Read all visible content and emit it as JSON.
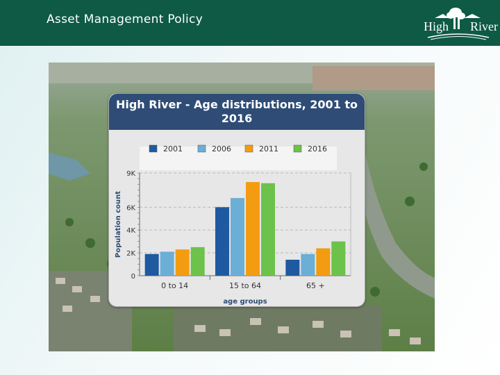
{
  "slide": {
    "title": "Asset Management Policy"
  },
  "logo": {
    "text_left": "High",
    "text_right": "River"
  },
  "colors": {
    "header": "#0e5a44",
    "chart_header": "#2e4c75"
  },
  "chart_data": {
    "type": "bar",
    "title": "High River - Age distributions, 2001 to 2016",
    "title_lines": [
      "High River - Age distributions, 2001 to",
      "2016"
    ],
    "xlabel": "age groups",
    "ylabel": "Population count",
    "categories": [
      "0 to 14",
      "15 to 64",
      "65 +"
    ],
    "ylim": [
      0,
      9000
    ],
    "yticks": [
      {
        "value": 0,
        "label": "0"
      },
      {
        "value": 2000,
        "label": "2K"
      },
      {
        "value": 4000,
        "label": "4K"
      },
      {
        "value": 6000,
        "label": "6K"
      },
      {
        "value": 9000,
        "label": "9K"
      }
    ],
    "legend_position": "top",
    "grid": true,
    "series": [
      {
        "name": "2001",
        "color": "#1f5aa0",
        "values": [
          1900,
          6000,
          1400
        ]
      },
      {
        "name": "2006",
        "color": "#6baed6",
        "values": [
          2100,
          6800,
          1900
        ]
      },
      {
        "name": "2011",
        "color": "#f39c12",
        "values": [
          2300,
          8200,
          2400
        ]
      },
      {
        "name": "2016",
        "color": "#6cc24a",
        "values": [
          2500,
          8100,
          3000
        ]
      }
    ]
  }
}
